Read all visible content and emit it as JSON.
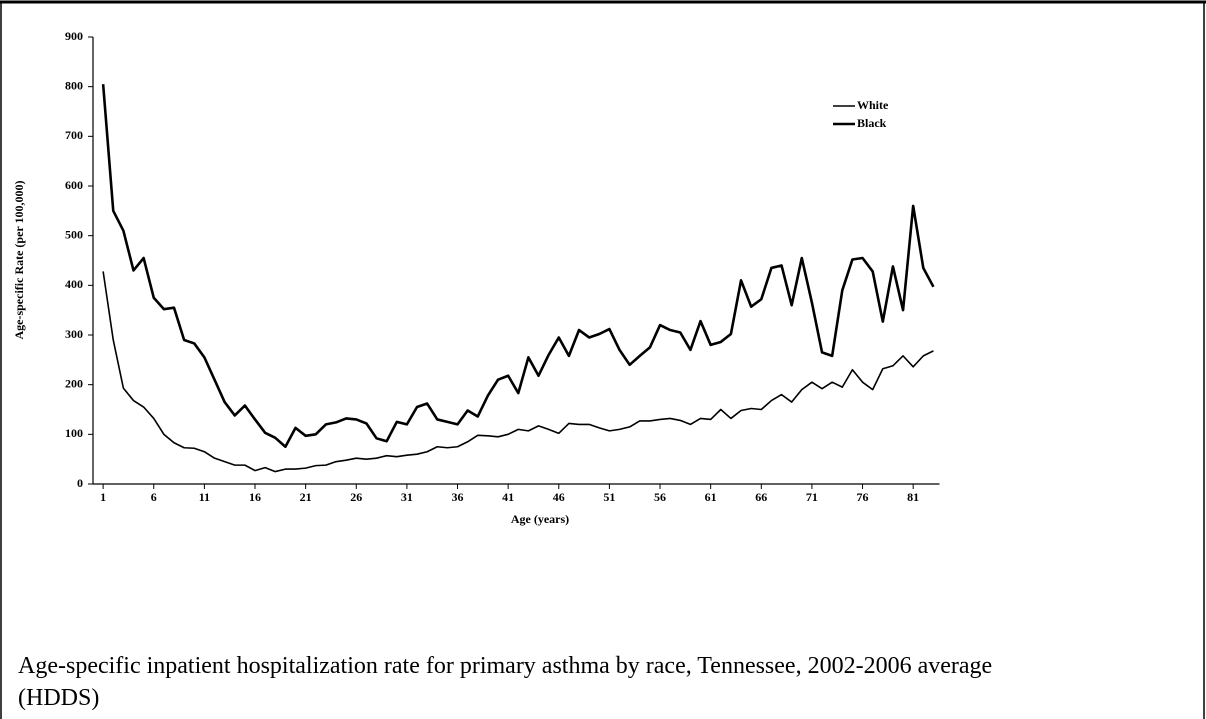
{
  "chart_data": {
    "type": "line",
    "title": "Age-specific inpatient hospitalization rate for primary asthma by race, Tennessee, 2002-2006 average (HDDS)",
    "x_label": "Age (years)",
    "y_label": "Age-specific Rate (per 100,000)",
    "x": [
      1,
      2,
      3,
      4,
      5,
      6,
      7,
      8,
      9,
      10,
      11,
      12,
      13,
      14,
      15,
      16,
      17,
      18,
      19,
      20,
      21,
      22,
      23,
      24,
      25,
      26,
      27,
      28,
      29,
      30,
      31,
      32,
      33,
      34,
      35,
      36,
      37,
      38,
      39,
      40,
      41,
      42,
      43,
      44,
      45,
      46,
      47,
      48,
      49,
      50,
      51,
      52,
      53,
      54,
      55,
      56,
      57,
      58,
      59,
      60,
      61,
      62,
      63,
      64,
      65,
      66,
      67,
      68,
      69,
      70,
      71,
      72,
      73,
      74,
      75,
      76,
      77,
      78,
      79,
      80,
      81,
      82,
      83
    ],
    "series": [
      {
        "name": "White",
        "color": "#000000",
        "line_width": 1.6,
        "values": [
          428,
          290,
          193,
          168,
          155,
          132,
          100,
          83,
          73,
          72,
          65,
          52,
          45,
          38,
          38,
          27,
          33,
          25,
          30,
          30,
          32,
          37,
          38,
          45,
          48,
          52,
          50,
          52,
          57,
          55,
          58,
          60,
          65,
          75,
          73,
          75,
          85,
          98,
          97,
          95,
          100,
          110,
          107,
          117,
          110,
          102,
          122,
          120,
          120,
          113,
          107,
          110,
          115,
          127,
          127,
          130,
          132,
          128,
          120,
          132,
          130,
          150,
          132,
          148,
          152,
          150,
          168,
          180,
          165,
          190,
          205,
          192,
          205,
          195,
          230,
          205,
          190,
          232,
          238,
          258,
          236,
          258,
          268
        ]
      },
      {
        "name": "Black",
        "color": "#000000",
        "line_width": 2.6,
        "values": [
          805,
          550,
          510,
          430,
          455,
          375,
          352,
          355,
          290,
          283,
          255,
          210,
          165,
          138,
          158,
          130,
          103,
          93,
          75,
          113,
          97,
          100,
          120,
          124,
          132,
          130,
          122,
          92,
          86,
          125,
          120,
          155,
          162,
          130,
          125,
          120,
          148,
          136,
          178,
          210,
          218,
          183,
          255,
          218,
          260,
          295,
          258,
          310,
          295,
          302,
          312,
          270,
          240,
          258,
          275,
          320,
          310,
          305,
          270,
          328,
          280,
          286,
          302,
          410,
          357,
          372,
          435,
          440,
          360,
          455,
          365,
          265,
          258,
          390,
          452,
          455,
          428,
          327,
          438,
          350,
          560,
          435,
          397
        ]
      }
    ],
    "xlim": [
      0,
      83.6
    ],
    "xticks": [
      1,
      6,
      11,
      16,
      21,
      26,
      31,
      36,
      41,
      46,
      51,
      56,
      61,
      66,
      71,
      76,
      81
    ],
    "ylim": [
      0,
      900
    ],
    "yticks": [
      0,
      100,
      200,
      300,
      400,
      500,
      600,
      700,
      800,
      900
    ],
    "grid": false,
    "legend": "top-right"
  }
}
